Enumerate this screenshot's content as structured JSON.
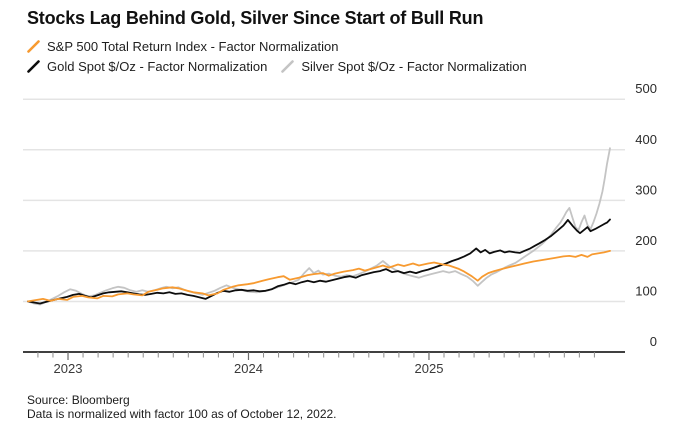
{
  "title": "Stocks Lag Behind Gold, Silver Since Start of Bull Run",
  "footer": {
    "source": "Source: Bloomberg",
    "note": "Data is normalized with factor 100 as of October 12, 2022."
  },
  "colors": {
    "sp500": "#F79A30",
    "gold": "#0D0D0D",
    "silver": "#C4C4C4",
    "gridline": "#E4E4E4",
    "axis": "#000000",
    "minor_tick": "#8C8C8C",
    "year_tick": "#6B6B6B",
    "tick_label": "#3A3A3A",
    "y_label": "#2B2B2B"
  },
  "chart_data": {
    "type": "line",
    "title": "Stocks Lag Behind Gold, Silver Since Start of Bull Run",
    "xlabel": "",
    "ylabel": "",
    "x_unit": "months since 2022-10-12 (normalization base date)",
    "x_range": [
      0,
      38.7
    ],
    "ylim": [
      0,
      500
    ],
    "y_ticks": [
      0,
      100,
      200,
      300,
      400,
      500
    ],
    "grid": "horizontal",
    "legend_position": "top-left",
    "x_year_ticks": [
      {
        "label": "2023",
        "t": 2.66
      },
      {
        "label": "2024",
        "t": 14.66
      },
      {
        "label": "2025",
        "t": 26.66
      }
    ],
    "x_minor_ticks": {
      "first_t": 0.66,
      "step": 1,
      "count": 38
    },
    "series": [
      {
        "name": "S&P 500 Total Return Index - Factor Normalization",
        "key": "sp500",
        "color": "#F79A30",
        "points": [
          [
            0,
            100
          ],
          [
            0.6,
            103
          ],
          [
            1,
            105
          ],
          [
            1.5,
            101
          ],
          [
            2,
            105
          ],
          [
            2.6,
            103
          ],
          [
            3,
            109
          ],
          [
            3.6,
            111
          ],
          [
            4,
            108
          ],
          [
            4.6,
            106
          ],
          [
            5,
            111
          ],
          [
            5.6,
            110
          ],
          [
            6,
            114
          ],
          [
            6.6,
            116
          ],
          [
            7,
            114
          ],
          [
            7.6,
            112
          ],
          [
            8,
            119
          ],
          [
            8.6,
            123
          ],
          [
            9,
            126
          ],
          [
            9.6,
            128
          ],
          [
            10,
            126
          ],
          [
            10.6,
            121
          ],
          [
            11,
            118
          ],
          [
            11.6,
            116
          ],
          [
            12,
            112
          ],
          [
            12.6,
            116
          ],
          [
            13,
            123
          ],
          [
            13.6,
            129
          ],
          [
            14,
            132
          ],
          [
            14.6,
            134
          ],
          [
            15,
            136
          ],
          [
            15.6,
            141
          ],
          [
            16,
            144
          ],
          [
            16.6,
            148
          ],
          [
            17,
            150
          ],
          [
            17.4,
            143
          ],
          [
            18,
            147
          ],
          [
            18.6,
            152
          ],
          [
            19,
            154
          ],
          [
            19.6,
            156
          ],
          [
            20,
            151
          ],
          [
            20.4,
            155
          ],
          [
            21,
            159
          ],
          [
            21.6,
            162
          ],
          [
            22,
            165
          ],
          [
            22.4,
            161
          ],
          [
            23,
            166
          ],
          [
            23.6,
            171
          ],
          [
            24,
            167
          ],
          [
            24.6,
            173
          ],
          [
            25,
            170
          ],
          [
            25.6,
            175
          ],
          [
            26,
            171
          ],
          [
            26.6,
            175
          ],
          [
            27,
            177
          ],
          [
            27.6,
            173
          ],
          [
            28,
            171
          ],
          [
            28.6,
            165
          ],
          [
            29,
            159
          ],
          [
            29.5,
            150
          ],
          [
            29.9,
            141
          ],
          [
            30.2,
            149
          ],
          [
            30.6,
            156
          ],
          [
            31,
            160
          ],
          [
            31.6,
            165
          ],
          [
            32,
            168
          ],
          [
            32.6,
            172
          ],
          [
            33,
            175
          ],
          [
            33.6,
            179
          ],
          [
            34,
            181
          ],
          [
            34.6,
            184
          ],
          [
            35,
            186
          ],
          [
            35.6,
            189
          ],
          [
            36,
            190
          ],
          [
            36.4,
            188
          ],
          [
            36.8,
            192
          ],
          [
            37.2,
            188
          ],
          [
            37.5,
            193
          ],
          [
            37.9,
            195
          ],
          [
            38.3,
            197
          ],
          [
            38.7,
            200
          ]
        ]
      },
      {
        "name": "Gold Spot $/Oz - Factor Normalization",
        "key": "gold",
        "color": "#0D0D0D",
        "points": [
          [
            0,
            100
          ],
          [
            0.4,
            98
          ],
          [
            0.8,
            96
          ],
          [
            1.2,
            99
          ],
          [
            1.6,
            102
          ],
          [
            2,
            105
          ],
          [
            2.6,
            109
          ],
          [
            3,
            113
          ],
          [
            3.4,
            115
          ],
          [
            3.8,
            111
          ],
          [
            4.2,
            108
          ],
          [
            4.6,
            112
          ],
          [
            5,
            116
          ],
          [
            5.4,
            118
          ],
          [
            5.8,
            119
          ],
          [
            6.2,
            120
          ],
          [
            6.6,
            118
          ],
          [
            7,
            116
          ],
          [
            7.4,
            114
          ],
          [
            7.8,
            113
          ],
          [
            8.2,
            115
          ],
          [
            8.6,
            117
          ],
          [
            9,
            116
          ],
          [
            9.4,
            118
          ],
          [
            9.8,
            115
          ],
          [
            10.2,
            116
          ],
          [
            10.6,
            113
          ],
          [
            11,
            111
          ],
          [
            11.4,
            108
          ],
          [
            11.8,
            105
          ],
          [
            12.2,
            111
          ],
          [
            12.6,
            117
          ],
          [
            13,
            121
          ],
          [
            13.4,
            119
          ],
          [
            13.8,
            122
          ],
          [
            14.2,
            123
          ],
          [
            14.6,
            121
          ],
          [
            15,
            122
          ],
          [
            15.4,
            120
          ],
          [
            15.8,
            121
          ],
          [
            16.2,
            124
          ],
          [
            16.6,
            130
          ],
          [
            17,
            133
          ],
          [
            17.4,
            137
          ],
          [
            17.8,
            134
          ],
          [
            18.2,
            138
          ],
          [
            18.6,
            141
          ],
          [
            19,
            138
          ],
          [
            19.4,
            141
          ],
          [
            19.8,
            139
          ],
          [
            20.2,
            142
          ],
          [
            20.6,
            145
          ],
          [
            21,
            148
          ],
          [
            21.4,
            150
          ],
          [
            21.8,
            147
          ],
          [
            22.2,
            152
          ],
          [
            22.6,
            155
          ],
          [
            23,
            158
          ],
          [
            23.4,
            160
          ],
          [
            23.8,
            164
          ],
          [
            24.2,
            158
          ],
          [
            24.6,
            160
          ],
          [
            25,
            156
          ],
          [
            25.4,
            159
          ],
          [
            25.8,
            156
          ],
          [
            26.2,
            160
          ],
          [
            26.6,
            163
          ],
          [
            27,
            167
          ],
          [
            27.4,
            171
          ],
          [
            27.8,
            175
          ],
          [
            28.2,
            180
          ],
          [
            28.6,
            184
          ],
          [
            29,
            189
          ],
          [
            29.4,
            195
          ],
          [
            29.8,
            205
          ],
          [
            30.1,
            197
          ],
          [
            30.4,
            202
          ],
          [
            30.7,
            195
          ],
          [
            31,
            198
          ],
          [
            31.4,
            201
          ],
          [
            31.7,
            197
          ],
          [
            32,
            199
          ],
          [
            32.4,
            197
          ],
          [
            32.7,
            196
          ],
          [
            33,
            200
          ],
          [
            33.4,
            205
          ],
          [
            33.7,
            210
          ],
          [
            34,
            215
          ],
          [
            34.4,
            222
          ],
          [
            34.8,
            230
          ],
          [
            35.2,
            240
          ],
          [
            35.6,
            250
          ],
          [
            35.9,
            261
          ],
          [
            36.2,
            250
          ],
          [
            36.5,
            240
          ],
          [
            36.7,
            235
          ],
          [
            37,
            242
          ],
          [
            37.2,
            247
          ],
          [
            37.4,
            239
          ],
          [
            37.7,
            243
          ],
          [
            38,
            248
          ],
          [
            38.3,
            253
          ],
          [
            38.5,
            256
          ],
          [
            38.7,
            262
          ]
        ]
      },
      {
        "name": "Silver Spot $/Oz - Factor Normalization",
        "key": "silver",
        "color": "#C4C4C4",
        "points": [
          [
            0,
            100
          ],
          [
            0.4,
            96
          ],
          [
            0.8,
            94
          ],
          [
            1.2,
            99
          ],
          [
            1.6,
            105
          ],
          [
            2,
            111
          ],
          [
            2.4,
            118
          ],
          [
            2.8,
            124
          ],
          [
            3.2,
            121
          ],
          [
            3.6,
            115
          ],
          [
            4,
            110
          ],
          [
            4.4,
            112
          ],
          [
            4.8,
            117
          ],
          [
            5.2,
            122
          ],
          [
            5.6,
            126
          ],
          [
            6,
            129
          ],
          [
            6.4,
            127
          ],
          [
            6.8,
            122
          ],
          [
            7.2,
            119
          ],
          [
            7.6,
            122
          ],
          [
            8,
            119
          ],
          [
            8.4,
            122
          ],
          [
            8.8,
            126
          ],
          [
            9.2,
            129
          ],
          [
            9.6,
            126
          ],
          [
            10,
            128
          ],
          [
            10.4,
            123
          ],
          [
            10.8,
            119
          ],
          [
            11.2,
            116
          ],
          [
            11.6,
            113
          ],
          [
            12,
            117
          ],
          [
            12.4,
            121
          ],
          [
            12.8,
            127
          ],
          [
            13.2,
            132
          ],
          [
            13.6,
            127
          ],
          [
            14,
            124
          ],
          [
            14.4,
            121
          ],
          [
            14.8,
            119
          ],
          [
            15.2,
            118
          ],
          [
            15.6,
            120
          ],
          [
            16,
            122
          ],
          [
            16.4,
            126
          ],
          [
            16.8,
            130
          ],
          [
            17.2,
            134
          ],
          [
            17.6,
            138
          ],
          [
            18,
            143
          ],
          [
            18.4,
            157
          ],
          [
            18.7,
            166
          ],
          [
            19,
            156
          ],
          [
            19.3,
            161
          ],
          [
            19.6,
            153
          ],
          [
            20,
            155
          ],
          [
            20.4,
            151
          ],
          [
            20.8,
            149
          ],
          [
            21.2,
            152
          ],
          [
            21.6,
            150
          ],
          [
            22,
            154
          ],
          [
            22.4,
            159
          ],
          [
            22.8,
            165
          ],
          [
            23.2,
            171
          ],
          [
            23.6,
            180
          ],
          [
            24,
            170
          ],
          [
            24.4,
            163
          ],
          [
            24.8,
            157
          ],
          [
            25.2,
            153
          ],
          [
            25.6,
            150
          ],
          [
            26,
            147
          ],
          [
            26.4,
            151
          ],
          [
            26.8,
            154
          ],
          [
            27.2,
            157
          ],
          [
            27.6,
            160
          ],
          [
            28,
            157
          ],
          [
            28.4,
            160
          ],
          [
            28.8,
            154
          ],
          [
            29.2,
            149
          ],
          [
            29.6,
            140
          ],
          [
            29.9,
            131
          ],
          [
            30.2,
            139
          ],
          [
            30.5,
            147
          ],
          [
            30.8,
            153
          ],
          [
            31.1,
            157
          ],
          [
            31.4,
            162
          ],
          [
            31.7,
            167
          ],
          [
            32,
            171
          ],
          [
            32.4,
            176
          ],
          [
            32.7,
            182
          ],
          [
            33,
            188
          ],
          [
            33.3,
            194
          ],
          [
            33.6,
            200
          ],
          [
            33.9,
            207
          ],
          [
            34.2,
            214
          ],
          [
            34.5,
            223
          ],
          [
            34.8,
            233
          ],
          [
            35.1,
            245
          ],
          [
            35.4,
            256
          ],
          [
            35.6,
            266
          ],
          [
            35.8,
            277
          ],
          [
            36,
            285
          ],
          [
            36.2,
            266
          ],
          [
            36.4,
            247
          ],
          [
            36.6,
            241
          ],
          [
            36.8,
            257
          ],
          [
            37,
            270
          ],
          [
            37.2,
            251
          ],
          [
            37.4,
            243
          ],
          [
            37.6,
            257
          ],
          [
            37.8,
            274
          ],
          [
            38,
            294
          ],
          [
            38.2,
            318
          ],
          [
            38.35,
            344
          ],
          [
            38.5,
            372
          ],
          [
            38.7,
            403
          ]
        ]
      }
    ]
  }
}
